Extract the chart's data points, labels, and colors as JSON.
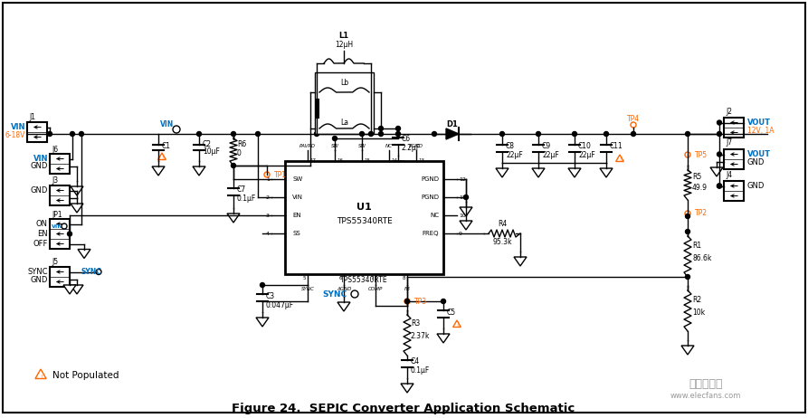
{
  "title": "Figure 24.  SEPIC Converter Application Schematic",
  "background_color": "#ffffff",
  "fig_width": 8.93,
  "fig_height": 4.62,
  "watermark": "www.elecfans.com",
  "watermark2": "电子发烧友",
  "not_populated_text": "Not Populated",
  "colors": {
    "black": "#000000",
    "blue": "#0070C0",
    "orange": "#FF6600",
    "gray": "#999999"
  }
}
